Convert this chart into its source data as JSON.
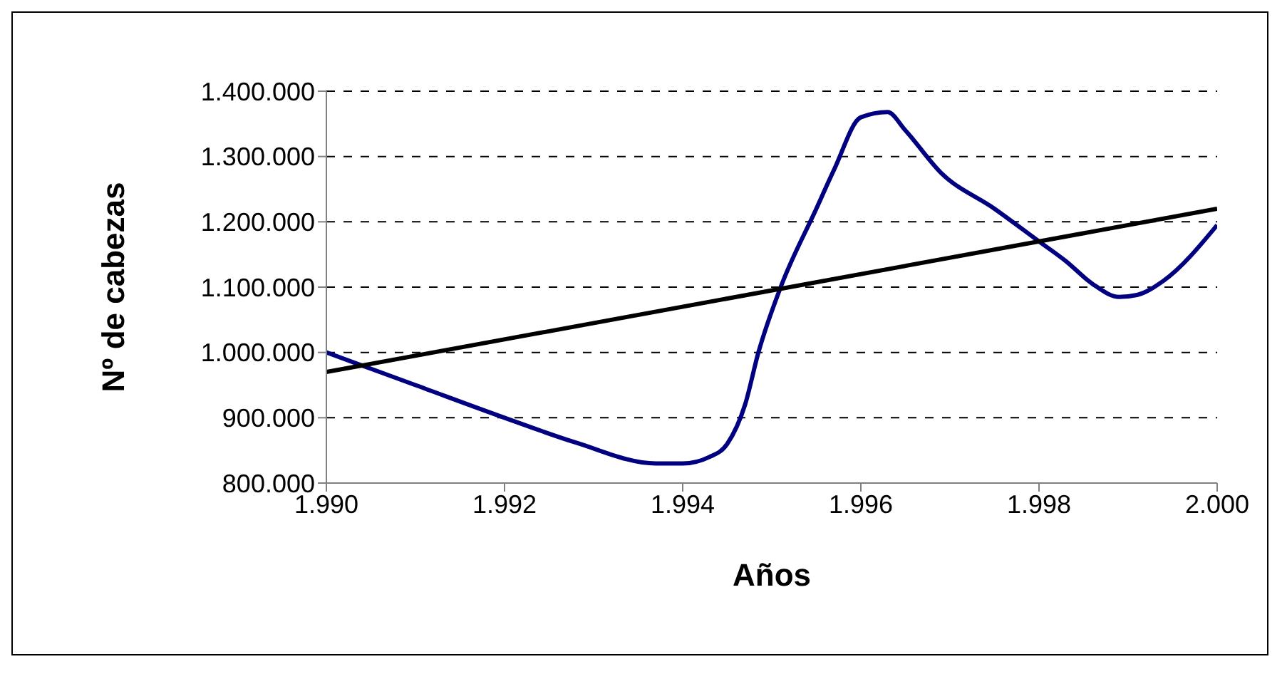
{
  "chart_data": {
    "type": "line",
    "xlabel": "Años",
    "ylabel": "Nº de cabezas",
    "xlim": [
      1990,
      2000
    ],
    "xticks": [
      {
        "value": 1990,
        "label": "1.990"
      },
      {
        "value": 1992,
        "label": "1.992"
      },
      {
        "value": 1994,
        "label": "1.994"
      },
      {
        "value": 1996,
        "label": "1.996"
      },
      {
        "value": 1998,
        "label": "1.998"
      },
      {
        "value": 2000,
        "label": "2.000"
      }
    ],
    "ylim": [
      800000,
      1400000
    ],
    "yticks": [
      {
        "value": 800000,
        "label": "800.000"
      },
      {
        "value": 900000,
        "label": "900.000"
      },
      {
        "value": 1000000,
        "label": "1.000.000"
      },
      {
        "value": 1100000,
        "label": "1.100.000"
      },
      {
        "value": 1200000,
        "label": "1.200.000"
      },
      {
        "value": 1300000,
        "label": "1.300.000"
      },
      {
        "value": 1400000,
        "label": "1.400.000"
      }
    ],
    "grid": "y",
    "marker": "none",
    "line_style": "solid",
    "series": [
      {
        "color": "#000080",
        "x": [
          1990,
          1991,
          1992,
          1992.8,
          1993.7,
          1994,
          1994.3,
          1994.5,
          1994.7,
          1994.85,
          1995.1,
          1995.5,
          1995.7,
          1996,
          1996.3,
          1996.5,
          1996.9,
          1997.5,
          1998,
          1998.3,
          1998.6,
          1998.9,
          1999.1,
          1999.4,
          2000
        ],
        "values": [
          1000000,
          950000,
          900000,
          862000,
          830000,
          830000,
          840000,
          860000,
          920000,
          1000000,
          1100000,
          1220000,
          1280000,
          1360000,
          1368000,
          1340000,
          1275000,
          1220000,
          1170000,
          1140000,
          1105000,
          1085000,
          1088000,
          1110000,
          1195000
        ]
      },
      {
        "color": "#000000",
        "x": [
          1990,
          2000
        ],
        "values": [
          970000,
          1220000
        ]
      }
    ]
  }
}
